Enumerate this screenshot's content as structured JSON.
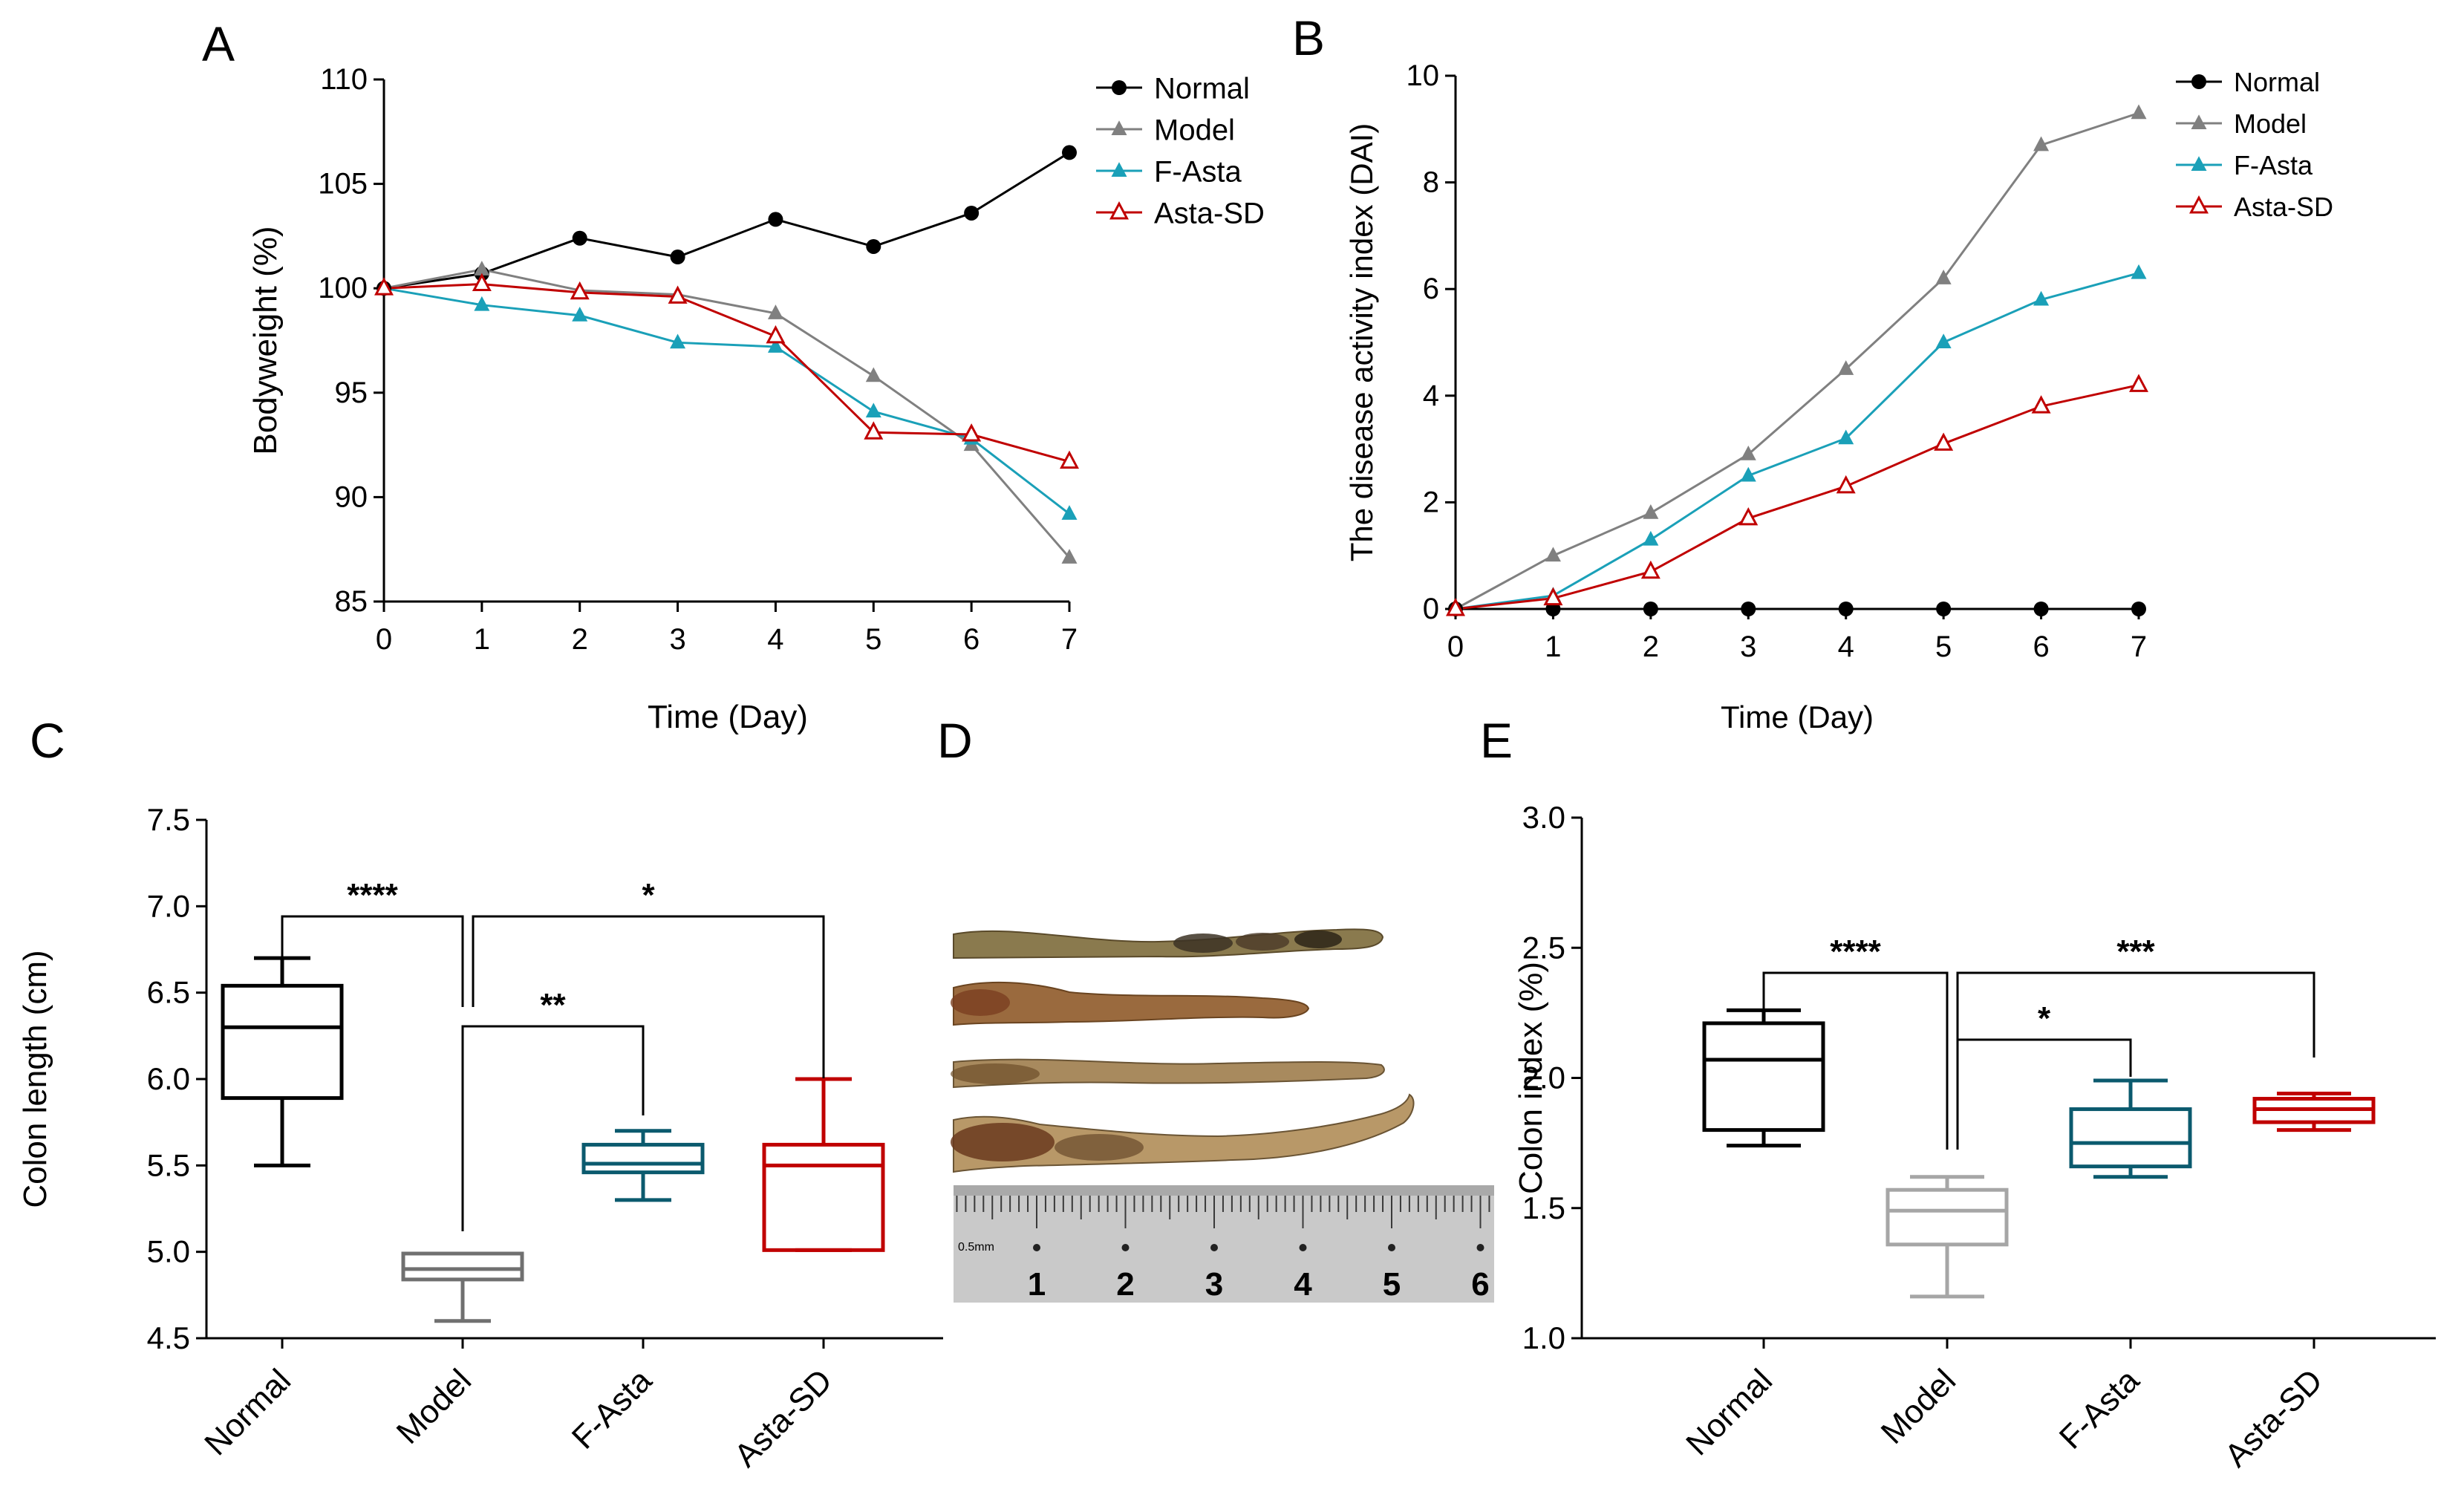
{
  "chart_data": [
    {
      "panel": "A",
      "type": "line",
      "title": "",
      "xlabel": "Time (Day)",
      "ylabel": "Bodyweight (%)",
      "x": [
        0,
        1,
        2,
        3,
        4,
        5,
        6,
        7
      ],
      "xticks": [
        "0",
        "1",
        "2",
        "3",
        "4",
        "5",
        "6",
        "7"
      ],
      "yticks": [
        "85",
        "90",
        "95",
        "100",
        "105",
        "110"
      ],
      "ylim": [
        85,
        110
      ],
      "legend_position": "top-right",
      "series": [
        {
          "name": "Normal",
          "color": "#000000",
          "marker": "circle",
          "values": [
            100,
            100.7,
            102.4,
            101.5,
            103.3,
            102.0,
            103.6,
            106.5
          ]
        },
        {
          "name": "Model",
          "color": "#808080",
          "marker": "triangle",
          "values": [
            100,
            100.9,
            99.9,
            99.7,
            98.8,
            95.8,
            92.5,
            87.1
          ]
        },
        {
          "name": "F-Asta",
          "color": "#1aa0b8",
          "marker": "triangle",
          "values": [
            100,
            99.2,
            98.7,
            97.4,
            97.2,
            94.1,
            92.8,
            89.2
          ]
        },
        {
          "name": "Asta-SD",
          "color": "#c00000",
          "marker": "open-triangle",
          "values": [
            100,
            100.2,
            99.8,
            99.6,
            97.7,
            93.1,
            93.0,
            91.7
          ]
        }
      ]
    },
    {
      "panel": "B",
      "type": "line",
      "title": "",
      "xlabel": "Time (Day)",
      "ylabel": "The disease activity index (DAI)",
      "x": [
        0,
        1,
        2,
        3,
        4,
        5,
        6,
        7
      ],
      "xticks": [
        "0",
        "1",
        "2",
        "3",
        "4",
        "5",
        "6",
        "7"
      ],
      "yticks": [
        "0",
        "2",
        "4",
        "6",
        "8",
        "10"
      ],
      "ylim": [
        0,
        10
      ],
      "legend_position": "top-right",
      "series": [
        {
          "name": "Normal",
          "color": "#000000",
          "marker": "circle",
          "values": [
            0,
            0,
            0,
            0,
            0,
            0,
            0,
            0
          ]
        },
        {
          "name": "Model",
          "color": "#808080",
          "marker": "triangle",
          "values": [
            0,
            1.0,
            1.8,
            2.9,
            4.5,
            6.2,
            8.7,
            9.3
          ]
        },
        {
          "name": "F-Asta",
          "color": "#1aa0b8",
          "marker": "triangle",
          "values": [
            0,
            0.25,
            1.3,
            2.5,
            3.2,
            5.0,
            5.8,
            6.3
          ]
        },
        {
          "name": "Asta-SD",
          "color": "#c00000",
          "marker": "open-triangle",
          "values": [
            0,
            0.2,
            0.7,
            1.7,
            2.3,
            3.1,
            3.8,
            4.2
          ]
        }
      ]
    },
    {
      "panel": "C",
      "type": "box",
      "title": "",
      "xlabel": "",
      "ylabel": "Colon length (cm)",
      "categories": [
        "Normal",
        "Model",
        "F-Asta",
        "Asta-SD"
      ],
      "yticks": [
        "4.5",
        "5.0",
        "5.5",
        "6.0",
        "6.5",
        "7.0",
        "7.5"
      ],
      "ylim": [
        4.5,
        7.5
      ],
      "boxes": [
        {
          "name": "Normal",
          "color": "#000000",
          "min": 5.5,
          "q1": 5.89,
          "median": 6.3,
          "q3": 6.54,
          "max": 6.7
        },
        {
          "name": "Model",
          "color": "#707070",
          "min": 4.6,
          "q1": 4.84,
          "median": 4.9,
          "q3": 4.99,
          "max": 4.99
        },
        {
          "name": "F-Asta",
          "color": "#0b5a6e",
          "min": 5.3,
          "q1": 5.46,
          "median": 5.51,
          "q3": 5.62,
          "max": 5.7
        },
        {
          "name": "Asta-SD",
          "color": "#c00000",
          "min": 5.01,
          "q1": 5.01,
          "median": 5.5,
          "q3": 5.62,
          "max": 6.0
        }
      ],
      "significance": [
        {
          "from": "Normal",
          "to": "Model",
          "label": "****"
        },
        {
          "from": "Model",
          "to": "Asta-SD",
          "label": "*"
        },
        {
          "from": "Model",
          "to": "F-Asta",
          "label": "**"
        }
      ]
    },
    {
      "panel": "E",
      "type": "box",
      "title": "",
      "xlabel": "",
      "ylabel": "Colon index (%)",
      "categories": [
        "Normal",
        "Model",
        "F-Asta",
        "Asta-SD"
      ],
      "yticks": [
        "1.0",
        "1.5",
        "2.0",
        "2.5",
        "3.0"
      ],
      "ylim": [
        1.0,
        3.0
      ],
      "boxes": [
        {
          "name": "Normal",
          "color": "#000000",
          "min": 1.74,
          "q1": 1.8,
          "median": 2.07,
          "q3": 2.21,
          "max": 2.26
        },
        {
          "name": "Model",
          "color": "#a6a6a6",
          "min": 1.16,
          "q1": 1.36,
          "median": 1.49,
          "q3": 1.57,
          "max": 1.62
        },
        {
          "name": "F-Asta",
          "color": "#0b5a6e",
          "min": 1.62,
          "q1": 1.66,
          "median": 1.75,
          "q3": 1.88,
          "max": 1.99
        },
        {
          "name": "Asta-SD",
          "color": "#c00000",
          "min": 1.8,
          "q1": 1.83,
          "median": 1.88,
          "q3": 1.92,
          "max": 1.94
        }
      ],
      "significance": [
        {
          "from": "Normal",
          "to": "Model",
          "label": "****"
        },
        {
          "from": "Model",
          "to": "Asta-SD",
          "label": "***"
        },
        {
          "from": "Model",
          "to": "F-Asta",
          "label": "*"
        }
      ]
    }
  ],
  "panels": {
    "A": "A",
    "B": "B",
    "C": "C",
    "D": "D",
    "E": "E"
  },
  "photo": {
    "scale_label": "0.5mm",
    "ruler_numbers": [
      "1",
      "2",
      "3",
      "4",
      "5",
      "6"
    ]
  }
}
